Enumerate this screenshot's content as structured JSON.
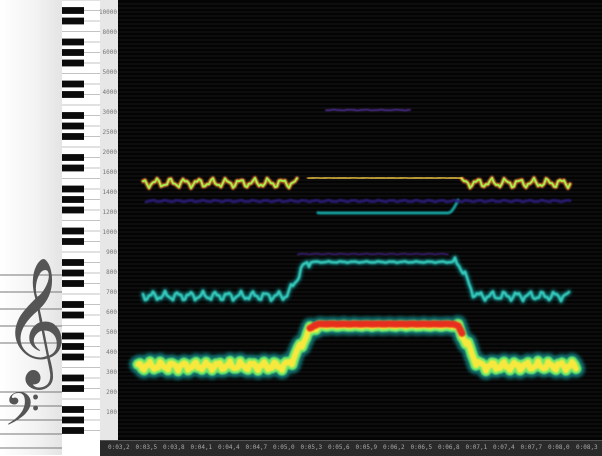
{
  "app": {
    "view": "spectrogram"
  },
  "freq_axis": {
    "labels": [
      "10000",
      "8000",
      "6000",
      "5000",
      "4000",
      "3000",
      "2500",
      "2000",
      "1600",
      "1400",
      "1200",
      "1000",
      "900",
      "800",
      "700",
      "600",
      "500",
      "400",
      "300",
      "200",
      "100"
    ]
  },
  "time_axis": {
    "labels": [
      "0:03,2",
      "0:03,5",
      "0:03,8",
      "0:04,1",
      "0:04,4",
      "0:04,7",
      "0:05,0",
      "0:05,3",
      "0:05,6",
      "0:05,9",
      "0:06,2",
      "0:06,5",
      "0:06,8",
      "0:07,1",
      "0:07,4",
      "0:07,7",
      "0:08,0"
    ],
    "end_label": "0:08,3"
  },
  "colors": {
    "background": "#040404",
    "low": "#2b1d7a",
    "mid": "#19c3c1",
    "high": "#ffe83a",
    "peak": "#e8261b"
  },
  "icons": {
    "treble_clef": "treble-clef-icon",
    "bass_clef": "bass-clef-icon"
  }
}
